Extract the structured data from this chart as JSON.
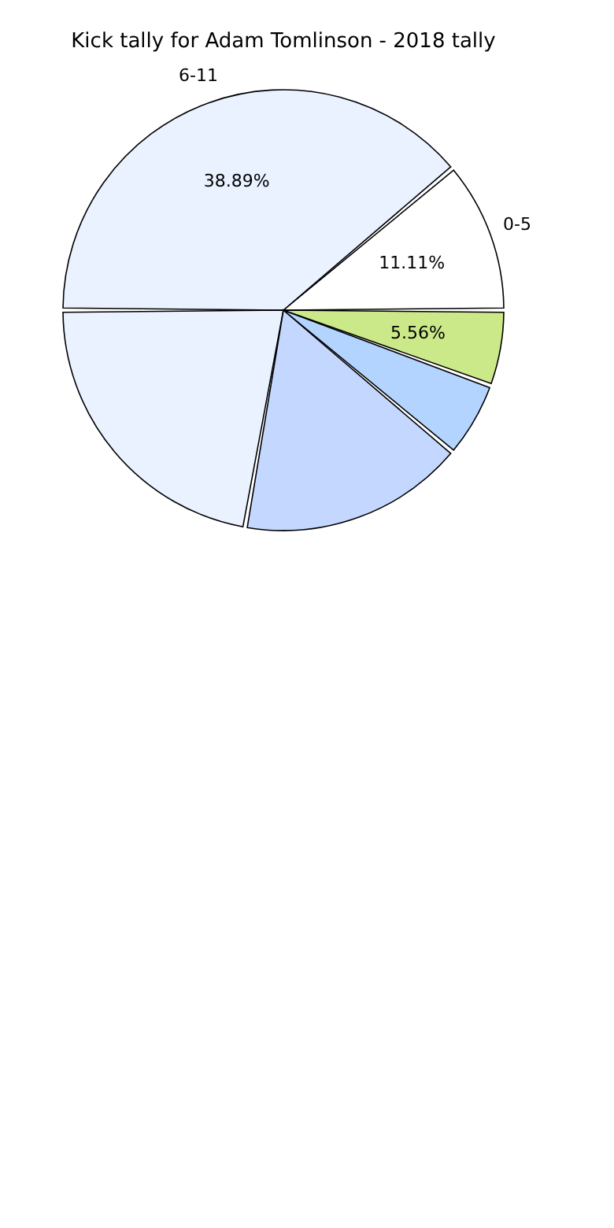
{
  "chart_data": {
    "type": "pie",
    "title": "Kick tally for Adam Tomlinson - 2018 tally",
    "categories": [
      "0-5",
      "6-11",
      null,
      null,
      null,
      null
    ],
    "values": [
      11.11,
      38.89,
      22.22,
      16.67,
      5.55,
      5.56
    ],
    "colors": [
      "#ffffff",
      "#eaf1ff",
      "#eaf1ff",
      "#c4d8ff",
      "#b3d4ff",
      "#cce98a"
    ],
    "value_labels": [
      "11.11%",
      "38.89%",
      null,
      null,
      null,
      "5.56%"
    ]
  }
}
